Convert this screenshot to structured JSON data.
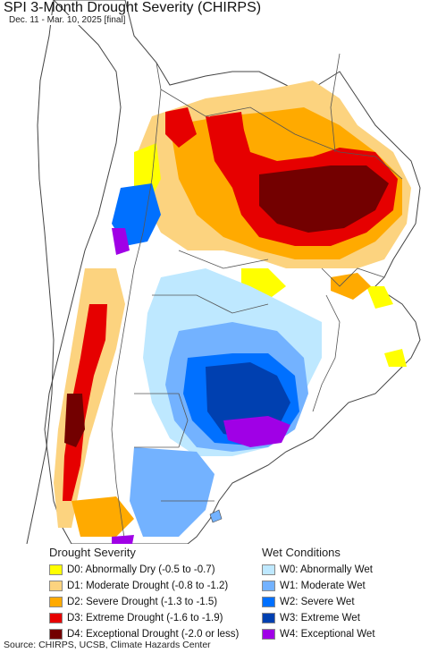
{
  "map": {
    "title": "SPI 3-Month Drought Severity (CHIRPS)",
    "subtitle": "Dec. 11 - Mar. 10, 2025 [final]",
    "colors": {
      "ocean": "#ffffff",
      "land_no_data_white": "#ffffff",
      "outside_region": "#ffffff"
    }
  },
  "legend": {
    "drought_heading": "Drought Severity",
    "wet_heading": "Wet Conditions",
    "drought_items": [
      {
        "label": "D0: Abnormally Dry (-0.5 to -0.7)",
        "color": "#ffff00"
      },
      {
        "label": "D1: Moderate Drought (-0.8 to -1.2)",
        "color": "#fcd37f"
      },
      {
        "label": "D2: Severe Drought (-1.3 to -1.5)",
        "color": "#ffaa00"
      },
      {
        "label": "D3: Extreme Drought (-1.6 to -1.9)",
        "color": "#e60000"
      },
      {
        "label": "D4: Exceptional Drought (-2.0 or less)",
        "color": "#730000"
      }
    ],
    "wet_items": [
      {
        "label": "W0: Abnormally Wet",
        "color": "#bee8ff"
      },
      {
        "label": "W1: Moderate Wet",
        "color": "#73b2ff"
      },
      {
        "label": "W2: Severe Wet",
        "color": "#0070ff"
      },
      {
        "label": "W3: Extreme Wet",
        "color": "#0040b0"
      },
      {
        "label": "W4: Exceptional Wet",
        "color": "#a000e6"
      }
    ]
  },
  "footer": {
    "source": "Source: CHIRPS, UCSB, Climate Hazards Center"
  }
}
